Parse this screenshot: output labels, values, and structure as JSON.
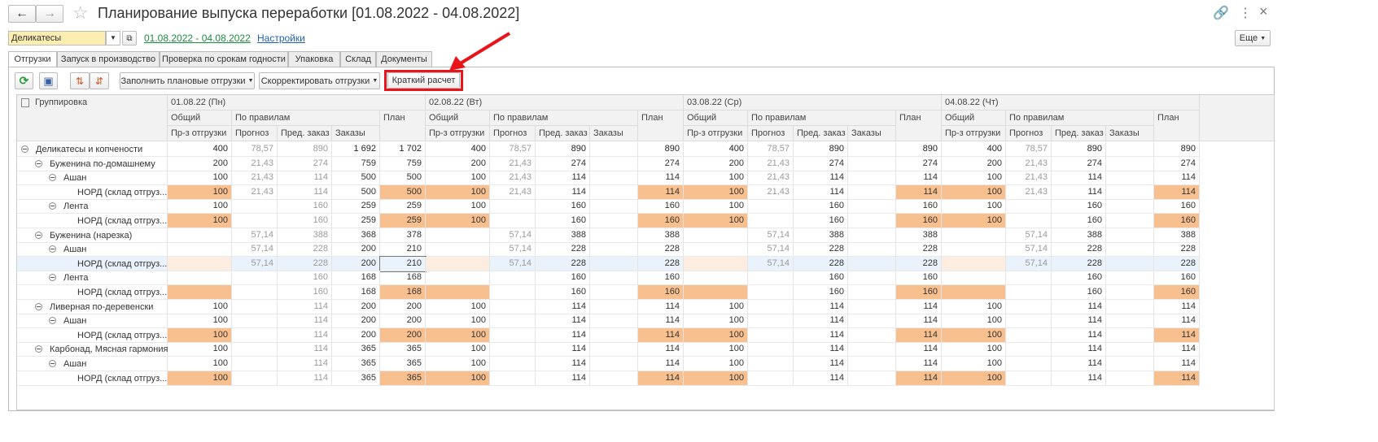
{
  "header": {
    "title": "Планирование выпуска переработки [01.08.2022 - 04.08.2022]"
  },
  "filters": {
    "select": "Деликатесы",
    "period": "01.08.2022 - 04.08.2022",
    "settings": "Настройки",
    "more": "Еще"
  },
  "tabs": [
    "Отгрузки",
    "Запуск в производство",
    "Проверка по срокам годности",
    "Упаковка",
    "Склад",
    "Документы"
  ],
  "toolbar": {
    "fill": "Заполнить плановые отгрузки",
    "adjust": "Скорректировать отгрузки",
    "brief": "Краткий расчет"
  },
  "table": {
    "grouping": "Группировка",
    "days": [
      "01.08.22 (Пн)",
      "02.08.22 (Вт)",
      "03.08.22 (Ср)",
      "04.08.22 (Чт)"
    ],
    "sub": {
      "total": "Общий",
      "rules": "По правилам",
      "plan": "План",
      "shipment": "Пр-з отгрузки",
      "forecast": "Прогноз",
      "preorder": "Пред. заказ",
      "orders": "Заказы"
    },
    "rows": [
      {
        "label": "Деликатесы и копчености",
        "level": 0,
        "cells": [
          "400",
          "78,57",
          "890",
          "1 692",
          "1 702",
          "400",
          "78,57",
          "890",
          null,
          "890",
          "400",
          "78,57",
          "890",
          null,
          "890",
          "400",
          "78,57",
          "890",
          null,
          "890"
        ]
      },
      {
        "label": "Буженина по-домашнему",
        "level": 1,
        "cells": [
          "200",
          "21,43",
          "274",
          "759",
          "759",
          "200",
          "21,43",
          "274",
          null,
          "274",
          "200",
          "21,43",
          "274",
          null,
          "274",
          "200",
          "21,43",
          "274",
          null,
          "274"
        ]
      },
      {
        "label": "Ашан",
        "level": 2,
        "cells": [
          "100",
          "21,43",
          "114",
          "500",
          "500",
          "100",
          "21,43",
          "114",
          null,
          "114",
          "100",
          "21,43",
          "114",
          null,
          "114",
          "100",
          "21,43",
          "114",
          null,
          "114"
        ]
      },
      {
        "label": "НОРД (склад отгруз...",
        "level": 3,
        "cells": [
          "100",
          "21,43",
          "114",
          "500",
          "500",
          "100",
          "21,43",
          "114",
          null,
          "114",
          "100",
          "21,43",
          "114",
          null,
          "114",
          "100",
          "21,43",
          "114",
          null,
          "114"
        ]
      },
      {
        "label": "Лента",
        "level": 2,
        "cells": [
          "100",
          null,
          "160",
          "259",
          "259",
          "100",
          null,
          "160",
          null,
          "160",
          "100",
          null,
          "160",
          null,
          "160",
          "100",
          null,
          "160",
          null,
          "160"
        ]
      },
      {
        "label": "НОРД (склад отгруз...",
        "level": 3,
        "cells": [
          "100",
          null,
          "160",
          "259",
          "259",
          "100",
          null,
          "160",
          null,
          "160",
          "100",
          null,
          "160",
          null,
          "160",
          "100",
          null,
          "160",
          null,
          "160"
        ]
      },
      {
        "label": "Буженина (нарезка)",
        "level": 1,
        "cells": [
          null,
          "57,14",
          "388",
          "368",
          "378",
          null,
          "57,14",
          "388",
          null,
          "388",
          null,
          "57,14",
          "388",
          null,
          "388",
          null,
          "57,14",
          "388",
          null,
          "388"
        ]
      },
      {
        "label": "Ашан",
        "level": 2,
        "cells": [
          null,
          "57,14",
          "228",
          "200",
          "210",
          null,
          "57,14",
          "228",
          null,
          "228",
          null,
          "57,14",
          "228",
          null,
          "228",
          null,
          "57,14",
          "228",
          null,
          "228"
        ]
      },
      {
        "label": "НОРД (склад отгруз...",
        "level": 3,
        "cells": [
          null,
          "57,14",
          "228",
          "200",
          "210",
          null,
          "57,14",
          "228",
          null,
          "228",
          null,
          "57,14",
          "228",
          null,
          "228",
          null,
          "57,14",
          "228",
          null,
          "228"
        ]
      },
      {
        "label": "Лента",
        "level": 2,
        "cells": [
          null,
          null,
          "160",
          "168",
          "168",
          null,
          null,
          "160",
          null,
          "160",
          null,
          null,
          "160",
          null,
          "160",
          null,
          null,
          "160",
          null,
          "160"
        ]
      },
      {
        "label": "НОРД (склад отгруз...",
        "level": 3,
        "cells": [
          null,
          null,
          "160",
          "168",
          "168",
          null,
          null,
          "160",
          null,
          "160",
          null,
          null,
          "160",
          null,
          "160",
          null,
          null,
          "160",
          null,
          "160"
        ]
      },
      {
        "label": "Ливерная по-деревенски",
        "level": 1,
        "cells": [
          "100",
          null,
          "114",
          "200",
          "200",
          "100",
          null,
          "114",
          null,
          "114",
          "100",
          null,
          "114",
          null,
          "114",
          "100",
          null,
          "114",
          null,
          "114"
        ]
      },
      {
        "label": "Ашан",
        "level": 2,
        "cells": [
          "100",
          null,
          "114",
          "200",
          "200",
          "100",
          null,
          "114",
          null,
          "114",
          "100",
          null,
          "114",
          null,
          "114",
          "100",
          null,
          "114",
          null,
          "114"
        ]
      },
      {
        "label": "НОРД (склад отгруз...",
        "level": 3,
        "cells": [
          "100",
          null,
          "114",
          "200",
          "200",
          "100",
          null,
          "114",
          null,
          "114",
          "100",
          null,
          "114",
          null,
          "114",
          "100",
          null,
          "114",
          null,
          "114"
        ]
      },
      {
        "label": "Карбонад, Мясная гармония",
        "level": 1,
        "cells": [
          "100",
          null,
          "114",
          "365",
          "365",
          "100",
          null,
          "114",
          null,
          "114",
          "100",
          null,
          "114",
          null,
          "114",
          "100",
          null,
          "114",
          null,
          "114"
        ]
      },
      {
        "label": "Ашан",
        "level": 2,
        "cells": [
          "100",
          null,
          "114",
          "365",
          "365",
          "100",
          null,
          "114",
          null,
          "114",
          "100",
          null,
          "114",
          null,
          "114",
          "100",
          null,
          "114",
          null,
          "114"
        ]
      },
      {
        "label": "НОРД (склад отгруз...",
        "level": 3,
        "cells": [
          "100",
          null,
          "114",
          "365",
          "365",
          "100",
          null,
          "114",
          null,
          "114",
          "100",
          null,
          "114",
          null,
          "114",
          "100",
          null,
          "114",
          null,
          "114"
        ]
      }
    ]
  }
}
